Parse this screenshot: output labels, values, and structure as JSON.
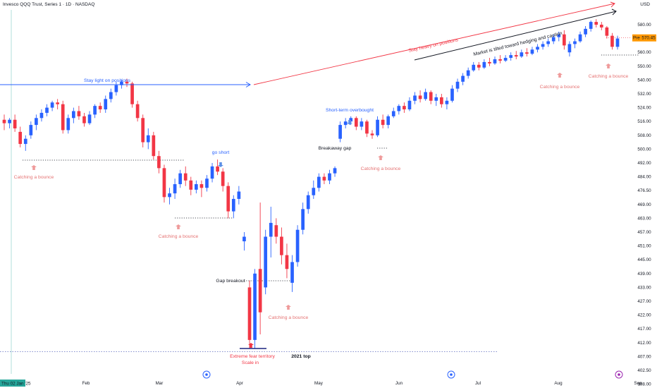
{
  "header": {
    "title": "Invesco QQQ Trust, Series 1 · 1D · NASDAQ",
    "currency": "USD"
  },
  "chart_data": {
    "type": "candlestick",
    "title": "Invesco QQQ Trust, Series 1 · 1D · NASDAQ",
    "y_axis": {
      "position": "right",
      "ticks": [
        580,
        570,
        560,
        550,
        540,
        532,
        524,
        516,
        508,
        500,
        492,
        484,
        476.5,
        469,
        463,
        457,
        451,
        445,
        439,
        433,
        427,
        422,
        417,
        412,
        407,
        402.5,
        398
      ],
      "tick_labels": [
        "580.00",
        "570.00",
        "560.00",
        "550.00",
        "540.00",
        "532.00",
        "524.00",
        "516.00",
        "508.00",
        "500.00",
        "492.00",
        "484.00",
        "476.50",
        "469.00",
        "463.00",
        "457.00",
        "451.00",
        "445.00",
        "439.00",
        "433.00",
        "427.00",
        "422.00",
        "417.00",
        "412.00",
        "407.00",
        "402.50",
        "398.00"
      ]
    },
    "x_axis": {
      "first_date_label": "Thu 02 Jan '25",
      "month_labels": [
        "Feb",
        "Mar",
        "Apr",
        "May",
        "Jun",
        "Jul",
        "Aug",
        "Sep"
      ]
    },
    "last_price": {
      "value": 570.45,
      "label": "570.45",
      "symbol_badge": "Pre"
    },
    "candles": [
      {
        "o": 517,
        "h": 520,
        "l": 511,
        "c": 515
      },
      {
        "o": 515,
        "h": 518,
        "l": 512,
        "c": 517
      },
      {
        "o": 517,
        "h": 520,
        "l": 510,
        "c": 512
      },
      {
        "o": 510,
        "h": 513,
        "l": 501,
        "c": 503
      },
      {
        "o": 503,
        "h": 508,
        "l": 499,
        "c": 506
      },
      {
        "o": 508,
        "h": 516,
        "l": 506,
        "c": 514
      },
      {
        "o": 514,
        "h": 520,
        "l": 511,
        "c": 518
      },
      {
        "o": 518,
        "h": 523,
        "l": 516,
        "c": 521
      },
      {
        "o": 521,
        "h": 526,
        "l": 519,
        "c": 524
      },
      {
        "o": 524,
        "h": 528,
        "l": 522,
        "c": 527
      },
      {
        "o": 527,
        "h": 529,
        "l": 523,
        "c": 526
      },
      {
        "o": 526,
        "h": 528,
        "l": 509,
        "c": 511
      },
      {
        "o": 511,
        "h": 520,
        "l": 509,
        "c": 518
      },
      {
        "o": 518,
        "h": 524,
        "l": 515,
        "c": 522
      },
      {
        "o": 522,
        "h": 525,
        "l": 517,
        "c": 519
      },
      {
        "o": 519,
        "h": 521,
        "l": 513,
        "c": 515
      },
      {
        "o": 515,
        "h": 522,
        "l": 514,
        "c": 520
      },
      {
        "o": 520,
        "h": 526,
        "l": 518,
        "c": 525
      },
      {
        "o": 525,
        "h": 527,
        "l": 521,
        "c": 523
      },
      {
        "o": 523,
        "h": 531,
        "l": 521,
        "c": 529
      },
      {
        "o": 529,
        "h": 535,
        "l": 527,
        "c": 533
      },
      {
        "o": 533,
        "h": 539,
        "l": 531,
        "c": 537
      },
      {
        "o": 537,
        "h": 540,
        "l": 535,
        "c": 539
      },
      {
        "o": 539,
        "h": 541,
        "l": 536,
        "c": 538
      },
      {
        "o": 538,
        "h": 539,
        "l": 524,
        "c": 526
      },
      {
        "o": 526,
        "h": 528,
        "l": 516,
        "c": 518
      },
      {
        "o": 518,
        "h": 520,
        "l": 501,
        "c": 504
      },
      {
        "o": 504,
        "h": 512,
        "l": 500,
        "c": 508
      },
      {
        "o": 508,
        "h": 510,
        "l": 494,
        "c": 496
      },
      {
        "o": 496,
        "h": 499,
        "l": 486,
        "c": 489
      },
      {
        "o": 489,
        "h": 491,
        "l": 470,
        "c": 473
      },
      {
        "o": 473,
        "h": 478,
        "l": 469,
        "c": 475
      },
      {
        "o": 475,
        "h": 483,
        "l": 472,
        "c": 480
      },
      {
        "o": 480,
        "h": 488,
        "l": 478,
        "c": 486
      },
      {
        "o": 486,
        "h": 490,
        "l": 479,
        "c": 482
      },
      {
        "o": 482,
        "h": 484,
        "l": 474,
        "c": 477
      },
      {
        "o": 477,
        "h": 482,
        "l": 475,
        "c": 480
      },
      {
        "o": 480,
        "h": 482,
        "l": 473,
        "c": 478
      },
      {
        "o": 478,
        "h": 485,
        "l": 476,
        "c": 483
      },
      {
        "o": 483,
        "h": 492,
        "l": 481,
        "c": 490
      },
      {
        "o": 490,
        "h": 494,
        "l": 485,
        "c": 487
      },
      {
        "o": 487,
        "h": 489,
        "l": 476,
        "c": 479
      },
      {
        "o": 479,
        "h": 481,
        "l": 463,
        "c": 466
      },
      {
        "o": 466,
        "h": 474,
        "l": 463,
        "c": 472
      },
      {
        "o": 472,
        "h": 479,
        "l": 469,
        "c": 476
      },
      {
        "o": 453,
        "h": 457,
        "l": 449,
        "c": 455
      },
      {
        "o": 433,
        "h": 436,
        "l": 410,
        "c": 413
      },
      {
        "o": 413,
        "h": 441,
        "l": 410,
        "c": 439
      },
      {
        "o": 441,
        "h": 470,
        "l": 415,
        "c": 423
      },
      {
        "o": 433,
        "h": 458,
        "l": 430,
        "c": 455
      },
      {
        "o": 455,
        "h": 468,
        "l": 446,
        "c": 461
      },
      {
        "o": 460,
        "h": 463,
        "l": 452,
        "c": 455
      },
      {
        "o": 455,
        "h": 459,
        "l": 443,
        "c": 447
      },
      {
        "o": 447,
        "h": 452,
        "l": 437,
        "c": 441
      },
      {
        "o": 435,
        "h": 447,
        "l": 431,
        "c": 444
      },
      {
        "o": 444,
        "h": 460,
        "l": 442,
        "c": 458
      },
      {
        "o": 458,
        "h": 470,
        "l": 456,
        "c": 467
      },
      {
        "o": 467,
        "h": 476,
        "l": 465,
        "c": 474
      },
      {
        "o": 474,
        "h": 482,
        "l": 472,
        "c": 478
      },
      {
        "o": 478,
        "h": 486,
        "l": 476,
        "c": 484
      },
      {
        "o": 484,
        "h": 486,
        "l": 480,
        "c": 482
      },
      {
        "o": 482,
        "h": 488,
        "l": 480,
        "c": 486
      },
      {
        "o": 486,
        "h": 490,
        "l": 484,
        "c": 489
      },
      {
        "o": 506,
        "h": 516,
        "l": 504,
        "c": 514
      },
      {
        "o": 514,
        "h": 518,
        "l": 512,
        "c": 516
      },
      {
        "o": 516,
        "h": 519,
        "l": 514,
        "c": 518
      },
      {
        "o": 518,
        "h": 519,
        "l": 511,
        "c": 513
      },
      {
        "o": 513,
        "h": 518,
        "l": 511,
        "c": 516
      },
      {
        "o": 516,
        "h": 517,
        "l": 507,
        "c": 509
      },
      {
        "o": 509,
        "h": 511,
        "l": 506,
        "c": 508
      },
      {
        "o": 508,
        "h": 519,
        "l": 507,
        "c": 517
      },
      {
        "o": 517,
        "h": 520,
        "l": 512,
        "c": 514
      },
      {
        "o": 514,
        "h": 520,
        "l": 512,
        "c": 519
      },
      {
        "o": 519,
        "h": 524,
        "l": 518,
        "c": 522
      },
      {
        "o": 522,
        "h": 526,
        "l": 520,
        "c": 525
      },
      {
        "o": 525,
        "h": 527,
        "l": 521,
        "c": 523
      },
      {
        "o": 523,
        "h": 530,
        "l": 522,
        "c": 528
      },
      {
        "o": 528,
        "h": 533,
        "l": 526,
        "c": 531
      },
      {
        "o": 531,
        "h": 534,
        "l": 527,
        "c": 529
      },
      {
        "o": 529,
        "h": 535,
        "l": 528,
        "c": 533
      },
      {
        "o": 533,
        "h": 534,
        "l": 526,
        "c": 528
      },
      {
        "o": 528,
        "h": 532,
        "l": 525,
        "c": 530
      },
      {
        "o": 530,
        "h": 532,
        "l": 524,
        "c": 526
      },
      {
        "o": 526,
        "h": 530,
        "l": 523,
        "c": 528
      },
      {
        "o": 528,
        "h": 537,
        "l": 527,
        "c": 535
      },
      {
        "o": 535,
        "h": 541,
        "l": 533,
        "c": 539
      },
      {
        "o": 539,
        "h": 545,
        "l": 537,
        "c": 543
      },
      {
        "o": 543,
        "h": 549,
        "l": 541,
        "c": 547
      },
      {
        "o": 547,
        "h": 553,
        "l": 546,
        "c": 551
      },
      {
        "o": 551,
        "h": 553,
        "l": 547,
        "c": 549
      },
      {
        "o": 549,
        "h": 555,
        "l": 548,
        "c": 553
      },
      {
        "o": 553,
        "h": 556,
        "l": 550,
        "c": 552
      },
      {
        "o": 552,
        "h": 557,
        "l": 551,
        "c": 555
      },
      {
        "o": 555,
        "h": 558,
        "l": 552,
        "c": 554
      },
      {
        "o": 554,
        "h": 558,
        "l": 553,
        "c": 556
      },
      {
        "o": 556,
        "h": 560,
        "l": 554,
        "c": 558
      },
      {
        "o": 558,
        "h": 561,
        "l": 555,
        "c": 557
      },
      {
        "o": 557,
        "h": 562,
        "l": 556,
        "c": 560
      },
      {
        "o": 560,
        "h": 563,
        "l": 557,
        "c": 559
      },
      {
        "o": 559,
        "h": 564,
        "l": 558,
        "c": 562
      },
      {
        "o": 562,
        "h": 566,
        "l": 560,
        "c": 564
      },
      {
        "o": 564,
        "h": 568,
        "l": 562,
        "c": 566
      },
      {
        "o": 566,
        "h": 570,
        "l": 564,
        "c": 568
      },
      {
        "o": 568,
        "h": 573,
        "l": 566,
        "c": 571
      },
      {
        "o": 571,
        "h": 575,
        "l": 568,
        "c": 573
      },
      {
        "o": 573,
        "h": 576,
        "l": 562,
        "c": 565
      },
      {
        "o": 560,
        "h": 568,
        "l": 557,
        "c": 566
      },
      {
        "o": 566,
        "h": 570,
        "l": 563,
        "c": 568
      },
      {
        "o": 568,
        "h": 575,
        "l": 567,
        "c": 573
      },
      {
        "o": 573,
        "h": 579,
        "l": 571,
        "c": 577
      },
      {
        "o": 577,
        "h": 583,
        "l": 575,
        "c": 582
      },
      {
        "o": 582,
        "h": 584,
        "l": 578,
        "c": 580
      },
      {
        "o": 580,
        "h": 582,
        "l": 576,
        "c": 578
      },
      {
        "o": 578,
        "h": 579,
        "l": 570,
        "c": 572
      },
      {
        "o": 572,
        "h": 574,
        "l": 562,
        "c": 564
      },
      {
        "o": 564,
        "h": 572,
        "l": 562,
        "c": 570
      }
    ],
    "reference_lines": [
      {
        "label": "2021 top",
        "value": 408
      }
    ],
    "annotations": {
      "stay_light": "Stay light on positions",
      "stay_heavy": "Stay heavy on positions",
      "market_tilted": "Market is tilted toward hedging and caution",
      "short_term_overbought": "Short-term overbought",
      "go_short": "go short",
      "breakaway_gap": "Breakaway gap",
      "gap_breakout": "Gap breakout",
      "extreme_fear": "Extreme fear territory",
      "scale_in": "Scale in",
      "top_2021": "2021 top",
      "catching_bounce": "Catching a bounce"
    },
    "colors": {
      "up": "#2962ff",
      "down": "#f23645",
      "annotation_blue": "#2962ff",
      "annotation_red": "#f23645",
      "bounce_pink": "#ef9a9a"
    }
  }
}
